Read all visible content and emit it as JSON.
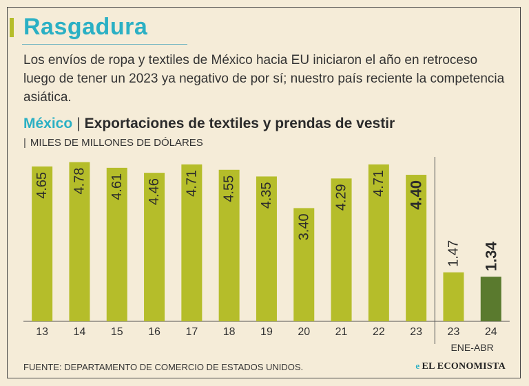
{
  "header": {
    "title": "Rasgadura",
    "intro": "Los envíos de ropa y textiles de México hacia EU iniciaron el año en retroceso luego de tener un 2023 ya negativo de por sí; nuestro país reciente la competencia asiática."
  },
  "subtitle": {
    "country": "México",
    "separator": "|",
    "description": "Exportaciones de textiles y prendas de vestir"
  },
  "units": "MILES DE MILLONES DE DÓLARES",
  "colors": {
    "bar": "#b5bd2a",
    "bar_highlight": "#5a7a2e",
    "accent": "#2bb0c4"
  },
  "chart_data": {
    "type": "bar",
    "title": "Exportaciones de textiles y prendas de vestir",
    "ylabel": "Miles de millones de dólares",
    "categories": [
      "13",
      "14",
      "15",
      "16",
      "17",
      "18",
      "19",
      "20",
      "21",
      "22",
      "23",
      "23",
      "24"
    ],
    "values": [
      4.65,
      4.78,
      4.61,
      4.46,
      4.71,
      4.55,
      4.35,
      3.4,
      4.29,
      4.71,
      4.4,
      1.47,
      1.34
    ],
    "labels": [
      "4.65",
      "4.78",
      "4.61",
      "4.46",
      "4.71",
      "4.55",
      "4.35",
      "3.40",
      "4.29",
      "4.71",
      "4.40",
      "1.47",
      "1.34"
    ],
    "bold_labels": [
      10,
      12
    ],
    "highlight_index": 12,
    "group_label": "ENE-ABR",
    "group_start_index": 11,
    "ylim": [
      0,
      5
    ]
  },
  "footer": {
    "source": "FUENTE: DEPARTAMENTO DE COMERCIO DE ESTADOS UNIDOS.",
    "logo_mark": "e",
    "logo_text": "EL ECONOMISTA"
  }
}
